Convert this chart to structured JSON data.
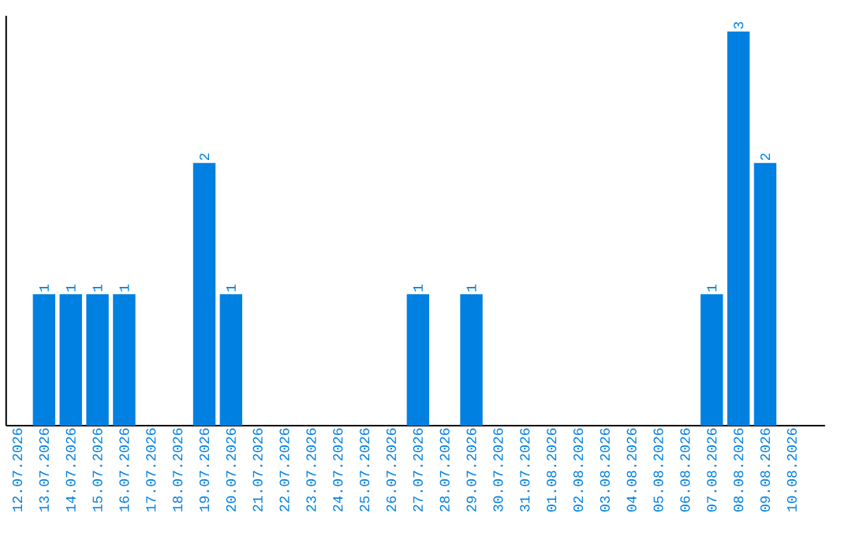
{
  "chart_data": {
    "type": "bar",
    "categories": [
      "12.07.2026",
      "13.07.2026",
      "14.07.2026",
      "15.07.2026",
      "16.07.2026",
      "17.07.2026",
      "18.07.2026",
      "19.07.2026",
      "20.07.2026",
      "21.07.2026",
      "22.07.2026",
      "23.07.2026",
      "24.07.2026",
      "25.07.2026",
      "26.07.2026",
      "27.07.2026",
      "28.07.2026",
      "29.07.2026",
      "30.07.2026",
      "31.07.2026",
      "01.08.2026",
      "02.08.2026",
      "03.08.2026",
      "04.08.2026",
      "05.08.2026",
      "06.08.2026",
      "07.08.2026",
      "08.08.2026",
      "09.08.2026",
      "10.08.2026"
    ],
    "values": [
      0,
      1,
      1,
      1,
      1,
      0,
      0,
      2,
      1,
      0,
      0,
      0,
      0,
      0,
      0,
      1,
      0,
      1,
      0,
      0,
      0,
      0,
      0,
      0,
      0,
      0,
      1,
      3,
      2,
      0
    ],
    "value_labels": [
      null,
      "1",
      "1",
      "1",
      "1",
      null,
      null,
      "2",
      "1",
      null,
      null,
      null,
      null,
      null,
      null,
      "1",
      null,
      "1",
      null,
      null,
      null,
      null,
      null,
      null,
      null,
      null,
      "1",
      "3",
      "2",
      null
    ],
    "color": "#0080e0"
  }
}
